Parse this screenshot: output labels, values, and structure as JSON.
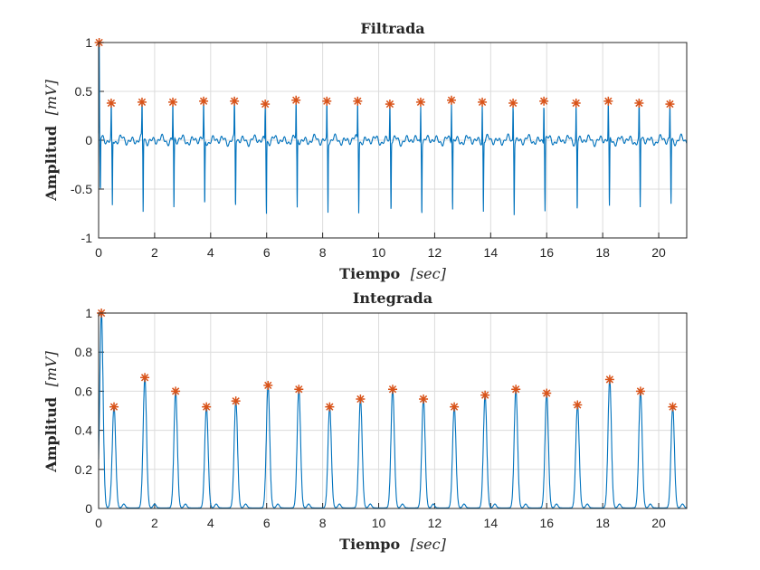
{
  "chart_data": [
    {
      "type": "line",
      "title": "Filtrada",
      "xlabel": "Tiempo",
      "xlabel_unit": "[sec]",
      "ylabel": "Amplitud",
      "ylabel_unit": "[mV]",
      "xlim": [
        0,
        21
      ],
      "ylim": [
        -1,
        1
      ],
      "xticks": [
        "0",
        "2",
        "4",
        "6",
        "8",
        "10",
        "12",
        "14",
        "16",
        "18",
        "20"
      ],
      "yticks": [
        "-1",
        "-0.5",
        "0",
        "0.5",
        "1"
      ],
      "grid": true,
      "signal_color": "#0072BD",
      "marker_color": "#D95319",
      "peaks_x": [
        0.02,
        0.45,
        1.55,
        2.65,
        3.75,
        4.85,
        5.95,
        7.05,
        8.15,
        9.25,
        10.4,
        11.5,
        12.6,
        13.7,
        14.8,
        15.9,
        17.05,
        18.2,
        19.3,
        20.4
      ],
      "peaks_y": [
        1.0,
        0.38,
        0.39,
        0.39,
        0.4,
        0.4,
        0.37,
        0.41,
        0.4,
        0.4,
        0.37,
        0.39,
        0.41,
        0.39,
        0.38,
        0.4,
        0.38,
        0.4,
        0.38,
        0.37
      ],
      "troughs_y": [
        -0.55,
        -0.68,
        -0.75,
        -0.72,
        -0.7,
        -0.7,
        -0.75,
        -0.72,
        -0.72,
        -0.72,
        -0.73,
        -0.72,
        -0.72,
        -0.72,
        -0.72,
        -0.72,
        -0.72,
        -0.74,
        -0.72,
        -0.65
      ]
    },
    {
      "type": "line",
      "title": "Integrada",
      "xlabel": "Tiempo",
      "xlabel_unit": "[sec]",
      "ylabel": "Amplitud",
      "ylabel_unit": "[mV]",
      "xlim": [
        0,
        21
      ],
      "ylim": [
        0,
        1
      ],
      "xticks": [
        "0",
        "2",
        "4",
        "6",
        "8",
        "10",
        "12",
        "14",
        "16",
        "18",
        "20"
      ],
      "yticks": [
        "0",
        "0.2",
        "0.4",
        "0.6",
        "0.8",
        "1"
      ],
      "grid": true,
      "signal_color": "#0072BD",
      "marker_color": "#D95319",
      "peaks_x": [
        0.1,
        0.55,
        1.65,
        2.75,
        3.85,
        4.9,
        6.05,
        7.15,
        8.25,
        9.35,
        10.5,
        11.6,
        12.7,
        13.8,
        14.9,
        16.0,
        17.1,
        18.25,
        19.35,
        20.5
      ],
      "peaks_y": [
        1.0,
        0.52,
        0.67,
        0.6,
        0.52,
        0.55,
        0.63,
        0.61,
        0.52,
        0.56,
        0.61,
        0.56,
        0.52,
        0.58,
        0.61,
        0.59,
        0.53,
        0.66,
        0.6,
        0.52
      ]
    }
  ]
}
